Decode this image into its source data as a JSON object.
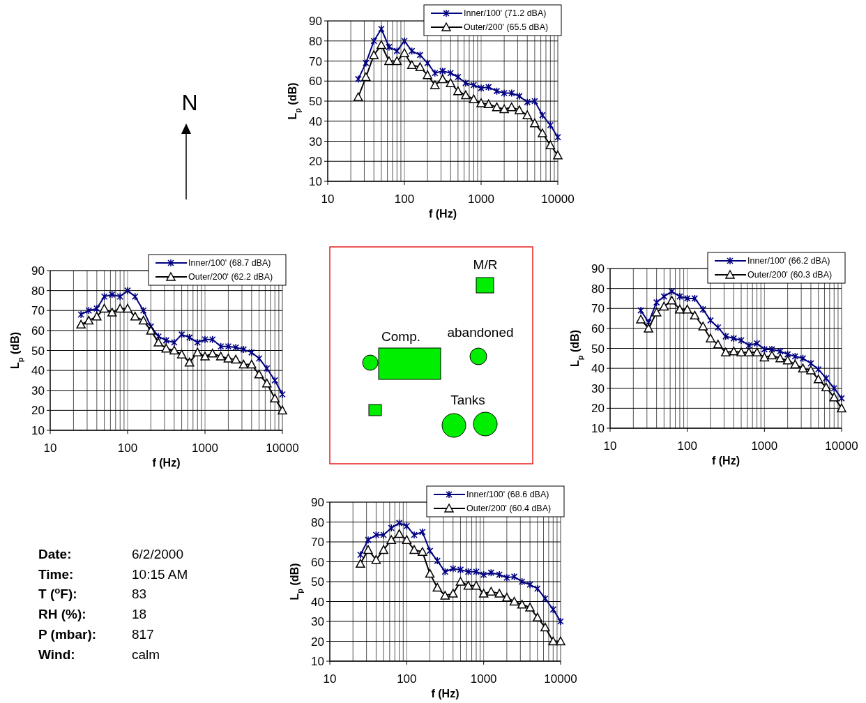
{
  "chart_data": [
    {
      "type": "line",
      "xlabel": "f (Hz)",
      "ylabel": "L$_{p}$ (dB)",
      "log": "x",
      "xlim": [
        10,
        10000
      ],
      "xticks": [
        10,
        {
          "value": 20,
          "label": null
        },
        {
          "value": 30,
          "label": null
        },
        {
          "value": 40,
          "label": null
        },
        {
          "value": 50,
          "label": null
        },
        {
          "value": 60,
          "label": null
        },
        {
          "value": 70,
          "label": null
        },
        {
          "value": 80,
          "label": null
        },
        {
          "value": 90,
          "label": null
        },
        100,
        {
          "value": 200,
          "label": null
        },
        {
          "value": 300,
          "label": null
        },
        {
          "value": 400,
          "label": null
        },
        {
          "value": 500,
          "label": null
        },
        {
          "value": 600,
          "label": null
        },
        {
          "value": 700,
          "label": null
        },
        {
          "value": 800,
          "label": null
        },
        {
          "value": 900,
          "label": null
        },
        1000,
        {
          "value": 2000,
          "label": null
        },
        {
          "value": 3000,
          "label": null
        },
        {
          "value": 4000,
          "label": null
        },
        {
          "value": 5000,
          "label": null
        },
        {
          "value": 6000,
          "label": null
        },
        {
          "value": 7000,
          "label": null
        },
        {
          "value": 8000,
          "label": null
        },
        {
          "value": 9000,
          "label": null
        },
        10000
      ],
      "ylim": [
        10,
        90
      ],
      "yticks": [
        10,
        20,
        30,
        40,
        50,
        60,
        70,
        80,
        90
      ],
      "grid": true,
      "legend": "top right",
      "x": [
        25,
        31.5,
        40,
        50,
        63,
        80,
        100,
        125,
        160,
        200,
        250,
        315,
        400,
        500,
        630,
        800,
        1000,
        1250,
        1600,
        2000,
        2500,
        3150,
        4000,
        5000,
        6300,
        8000,
        10000
      ],
      "series": [
        {
          "name": "Inner/100' (71.2 dBA)",
          "color": "#000080",
          "marker": "cross",
          "values": [
            61,
            69,
            80,
            86,
            77,
            75,
            80,
            75,
            73,
            69,
            64,
            65,
            64,
            62,
            59,
            58,
            56.5,
            57,
            55,
            54,
            54,
            52.5,
            49.5,
            50,
            43,
            38,
            32
          ]
        },
        {
          "name": "Outer/200' (65.5 dBA)",
          "color": "#000000",
          "marker": "triangle",
          "values": [
            52,
            62,
            73,
            78,
            70,
            70,
            74,
            68,
            67,
            63,
            58,
            61,
            59,
            55,
            53,
            51,
            49,
            48.5,
            47,
            46,
            47,
            45.5,
            43,
            39,
            34,
            28,
            23
          ]
        }
      ]
    },
    {
      "type": "line",
      "xlabel": "f (Hz)",
      "ylabel": "L$_{p}$ (dB)",
      "log": "x",
      "xlim": [
        10,
        10000
      ],
      "xticks": [
        10,
        {
          "value": 20,
          "label": null
        },
        {
          "value": 30,
          "label": null
        },
        {
          "value": 40,
          "label": null
        },
        {
          "value": 50,
          "label": null
        },
        {
          "value": 60,
          "label": null
        },
        {
          "value": 70,
          "label": null
        },
        {
          "value": 80,
          "label": null
        },
        {
          "value": 90,
          "label": null
        },
        100,
        {
          "value": 200,
          "label": null
        },
        {
          "value": 300,
          "label": null
        },
        {
          "value": 400,
          "label": null
        },
        {
          "value": 500,
          "label": null
        },
        {
          "value": 600,
          "label": null
        },
        {
          "value": 700,
          "label": null
        },
        {
          "value": 800,
          "label": null
        },
        {
          "value": 900,
          "label": null
        },
        1000,
        {
          "value": 2000,
          "label": null
        },
        {
          "value": 3000,
          "label": null
        },
        {
          "value": 4000,
          "label": null
        },
        {
          "value": 5000,
          "label": null
        },
        {
          "value": 6000,
          "label": null
        },
        {
          "value": 7000,
          "label": null
        },
        {
          "value": 8000,
          "label": null
        },
        {
          "value": 9000,
          "label": null
        },
        10000
      ],
      "ylim": [
        10,
        90
      ],
      "yticks": [
        10,
        20,
        30,
        40,
        50,
        60,
        70,
        80,
        90
      ],
      "grid": true,
      "legend": "top right",
      "x": [
        25,
        31.5,
        40,
        50,
        63,
        80,
        100,
        125,
        160,
        200,
        250,
        315,
        400,
        500,
        630,
        800,
        1000,
        1250,
        1600,
        2000,
        2500,
        3150,
        4000,
        5000,
        6300,
        8000,
        10000
      ],
      "series": [
        {
          "name": "Inner/100' (68.7 dBA)",
          "color": "#000080",
          "marker": "cross",
          "values": [
            68,
            70,
            71,
            77,
            78,
            77,
            80,
            77,
            70,
            62,
            57,
            55,
            54,
            58,
            56.5,
            54,
            55.5,
            55.5,
            52,
            52,
            51.5,
            50.5,
            49,
            46,
            41,
            35,
            28
          ]
        },
        {
          "name": "Outer/200' (62.2 dBA)",
          "color": "#000000",
          "marker": "triangle",
          "values": [
            63,
            65,
            67,
            71,
            69,
            71,
            71,
            67,
            65,
            60,
            54,
            51,
            50,
            48,
            44,
            49,
            47,
            48.5,
            47,
            46,
            45.5,
            43,
            43,
            38,
            33.5,
            26,
            20
          ]
        }
      ]
    },
    {
      "type": "line",
      "xlabel": "f (Hz)",
      "ylabel": "L$_{p}$ (dB)",
      "log": "x",
      "xlim": [
        10,
        10000
      ],
      "xticks": [
        10,
        {
          "value": 20,
          "label": null
        },
        {
          "value": 30,
          "label": null
        },
        {
          "value": 40,
          "label": null
        },
        {
          "value": 50,
          "label": null
        },
        {
          "value": 60,
          "label": null
        },
        {
          "value": 70,
          "label": null
        },
        {
          "value": 80,
          "label": null
        },
        {
          "value": 90,
          "label": null
        },
        100,
        {
          "value": 200,
          "label": null
        },
        {
          "value": 300,
          "label": null
        },
        {
          "value": 400,
          "label": null
        },
        {
          "value": 500,
          "label": null
        },
        {
          "value": 600,
          "label": null
        },
        {
          "value": 700,
          "label": null
        },
        {
          "value": 800,
          "label": null
        },
        {
          "value": 900,
          "label": null
        },
        1000,
        {
          "value": 2000,
          "label": null
        },
        {
          "value": 3000,
          "label": null
        },
        {
          "value": 4000,
          "label": null
        },
        {
          "value": 5000,
          "label": null
        },
        {
          "value": 6000,
          "label": null
        },
        {
          "value": 7000,
          "label": null
        },
        {
          "value": 8000,
          "label": null
        },
        {
          "value": 9000,
          "label": null
        },
        10000
      ],
      "ylim": [
        10,
        90
      ],
      "yticks": [
        10,
        20,
        30,
        40,
        50,
        60,
        70,
        80,
        90
      ],
      "grid": true,
      "legend": "top right",
      "x": [
        25,
        31.5,
        40,
        50,
        63,
        80,
        100,
        125,
        160,
        200,
        250,
        315,
        400,
        500,
        630,
        800,
        1000,
        1250,
        1600,
        2000,
        2500,
        3150,
        4000,
        5000,
        6300,
        8000,
        10000
      ],
      "series": [
        {
          "name": "Inner/100' (66.2 dBA)",
          "color": "#000080",
          "marker": "cross",
          "values": [
            69,
            63,
            73,
            76,
            78.5,
            76,
            75,
            75,
            69.5,
            64,
            60.5,
            56,
            55,
            54,
            51.5,
            52.5,
            49.5,
            49.5,
            48.5,
            47,
            46,
            45,
            42.5,
            39.5,
            35,
            30,
            25
          ]
        },
        {
          "name": "Outer/200' (60.3 dBA)",
          "color": "#000000",
          "marker": "triangle",
          "values": [
            64.5,
            60,
            68,
            71,
            74,
            69.5,
            69.5,
            66.5,
            61,
            55,
            52,
            48,
            48.5,
            48,
            48,
            48,
            45.5,
            46.5,
            45,
            44,
            42,
            40,
            39,
            34.5,
            30.5,
            25.5,
            20
          ]
        }
      ]
    },
    {
      "type": "line",
      "xlabel": "f (Hz)",
      "ylabel": "L$_{p}$ (dB)",
      "log": "x",
      "xlim": [
        10,
        10000
      ],
      "xticks": [
        10,
        {
          "value": 20,
          "label": null
        },
        {
          "value": 30,
          "label": null
        },
        {
          "value": 40,
          "label": null
        },
        {
          "value": 50,
          "label": null
        },
        {
          "value": 60,
          "label": null
        },
        {
          "value": 70,
          "label": null
        },
        {
          "value": 80,
          "label": null
        },
        {
          "value": 90,
          "label": null
        },
        100,
        {
          "value": 200,
          "label": null
        },
        {
          "value": 300,
          "label": null
        },
        {
          "value": 400,
          "label": null
        },
        {
          "value": 500,
          "label": null
        },
        {
          "value": 600,
          "label": null
        },
        {
          "value": 700,
          "label": null
        },
        {
          "value": 800,
          "label": null
        },
        {
          "value": 900,
          "label": null
        },
        1000,
        {
          "value": 2000,
          "label": null
        },
        {
          "value": 3000,
          "label": null
        },
        {
          "value": 4000,
          "label": null
        },
        {
          "value": 5000,
          "label": null
        },
        {
          "value": 6000,
          "label": null
        },
        {
          "value": 7000,
          "label": null
        },
        {
          "value": 8000,
          "label": null
        },
        {
          "value": 9000,
          "label": null
        },
        10000
      ],
      "ylim": [
        10,
        90
      ],
      "yticks": [
        10,
        20,
        30,
        40,
        50,
        60,
        70,
        80,
        90
      ],
      "grid": true,
      "legend": "top right",
      "x": [
        25,
        31.5,
        40,
        50,
        63,
        80,
        100,
        125,
        160,
        200,
        250,
        315,
        400,
        500,
        630,
        800,
        1000,
        1250,
        1600,
        2000,
        2500,
        3150,
        4000,
        5000,
        6300,
        8000,
        10000
      ],
      "series": [
        {
          "name": "Inner/100' (68.6 dBA)",
          "color": "#000080",
          "marker": "cross",
          "values": [
            63.5,
            71,
            73.5,
            73.5,
            77,
            79.5,
            78,
            73.5,
            75,
            65.5,
            60.5,
            55,
            56.5,
            56,
            55,
            55,
            53.5,
            54.5,
            53.5,
            52,
            52.5,
            50,
            48.5,
            46.5,
            41.5,
            36,
            30
          ]
        },
        {
          "name": "Outer/200' (60.4 dBA)",
          "color": "#000000",
          "marker": "triangle",
          "values": [
            59,
            66,
            61,
            66,
            71,
            74,
            71,
            66,
            65,
            54,
            47,
            43,
            44,
            50,
            48,
            48,
            44,
            45,
            44,
            42,
            40,
            38.5,
            37,
            32,
            27,
            20,
            20
          ]
        }
      ]
    },
    {
      "type": "other",
      "annotations": [
        "N",
        "M/R",
        "Comp.",
        "abandoned",
        "Tanks"
      ]
    },
    {
      "type": "other",
      "annotations": [
        "Date:",
        "6/2/2000",
        "Time:",
        "10:15 AM",
        "T ($^{o}$F):",
        "83",
        "RH (%):",
        "18",
        "P (mbar):",
        "817",
        "Wind:",
        "calm"
      ]
    }
  ]
}
